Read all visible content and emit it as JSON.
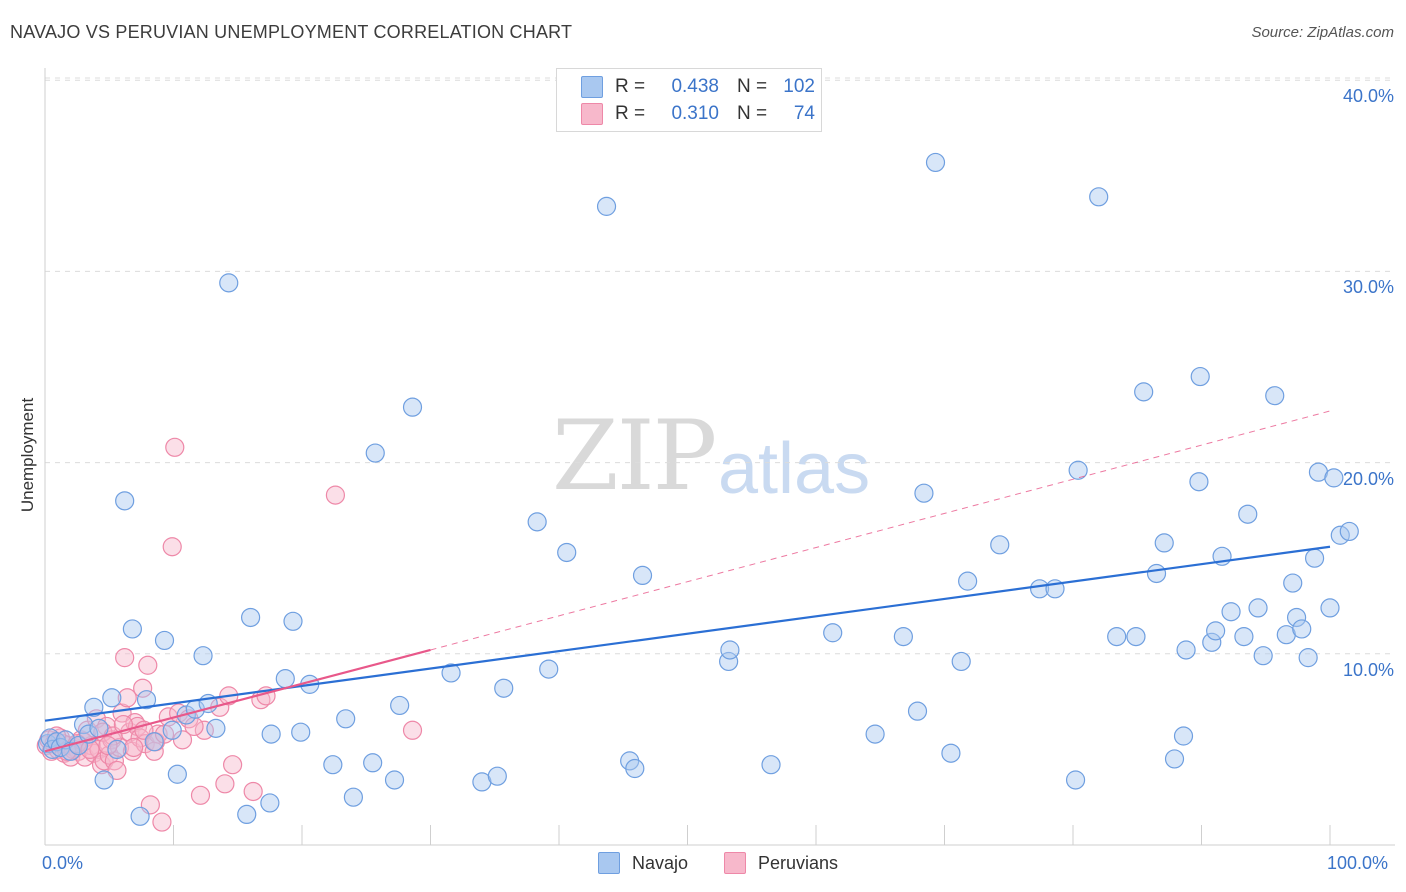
{
  "header": {
    "title": "NAVAJO VS PERUVIAN UNEMPLOYMENT CORRELATION CHART",
    "source": "Source: ZipAtlas.com"
  },
  "watermark": {
    "zip": "ZIP",
    "atlas": "atlas"
  },
  "legend_stats": {
    "navajo": {
      "r_label": "R =",
      "r_value": "0.438",
      "n_label": "N =",
      "n_value": "102"
    },
    "peruvians": {
      "r_label": "R =",
      "r_value": "0.310",
      "n_label": "N =",
      "n_value": "74"
    }
  },
  "legend_bottom": {
    "navajo": "Navajo",
    "peruvians": "Peruvians"
  },
  "colors": {
    "navajo_fill": "#a9c8f0",
    "navajo_stroke": "#6f9fe0",
    "navajo_line": "#2b6fd4",
    "peruvian_fill": "#f7b8cb",
    "peruvian_stroke": "#ee88a8",
    "peruvian_line": "#e8588a",
    "grid": "#dcdcdc",
    "tick_text": "#3b74c9"
  },
  "chart_data": {
    "type": "scatter",
    "title": "NAVAJO VS PERUVIAN UNEMPLOYMENT CORRELATION CHART",
    "xlabel": "",
    "ylabel": "Unemployment",
    "x_tick_labels": [
      "0.0%",
      "100.0%"
    ],
    "y_tick_labels": [
      "10.0%",
      "20.0%",
      "30.0%",
      "40.0%"
    ],
    "xlim": [
      0,
      100
    ],
    "ylim": [
      0,
      40.8
    ],
    "grid": "horizontal dashed",
    "legend": "top-center and bottom-center",
    "series": [
      {
        "name": "Navajo",
        "r": 0.438,
        "n": 102,
        "trend": {
          "x": [
            0,
            100
          ],
          "y": [
            6.5,
            15.6
          ],
          "style": "solid"
        },
        "points": [
          [
            0.2,
            5.3
          ],
          [
            0.4,
            5.6
          ],
          [
            0.6,
            5.0
          ],
          [
            0.9,
            5.4
          ],
          [
            1.2,
            5.1
          ],
          [
            1.6,
            5.5
          ],
          [
            2.0,
            4.9
          ],
          [
            2.6,
            5.2
          ],
          [
            3.0,
            6.3
          ],
          [
            3.4,
            5.8
          ],
          [
            3.8,
            7.2
          ],
          [
            4.2,
            6.1
          ],
          [
            4.6,
            3.4
          ],
          [
            5.2,
            7.7
          ],
          [
            5.6,
            5.0
          ],
          [
            6.2,
            18.0
          ],
          [
            6.8,
            11.3
          ],
          [
            7.4,
            1.5
          ],
          [
            7.9,
            7.6
          ],
          [
            8.5,
            5.4
          ],
          [
            9.3,
            10.7
          ],
          [
            9.9,
            6.0
          ],
          [
            10.3,
            3.7
          ],
          [
            11.0,
            6.8
          ],
          [
            11.7,
            7.1
          ],
          [
            12.3,
            9.9
          ],
          [
            12.7,
            7.4
          ],
          [
            13.3,
            6.1
          ],
          [
            14.3,
            29.4
          ],
          [
            15.7,
            1.6
          ],
          [
            16.0,
            11.9
          ],
          [
            17.5,
            2.2
          ],
          [
            17.6,
            5.8
          ],
          [
            18.7,
            8.7
          ],
          [
            19.3,
            11.7
          ],
          [
            19.9,
            5.9
          ],
          [
            20.6,
            8.4
          ],
          [
            22.4,
            4.2
          ],
          [
            23.4,
            6.6
          ],
          [
            24.0,
            2.5
          ],
          [
            25.5,
            4.3
          ],
          [
            25.7,
            20.5
          ],
          [
            27.2,
            3.4
          ],
          [
            27.6,
            7.3
          ],
          [
            28.6,
            22.9
          ],
          [
            31.6,
            9.0
          ],
          [
            34.0,
            3.3
          ],
          [
            35.2,
            3.6
          ],
          [
            35.7,
            8.2
          ],
          [
            38.3,
            16.9
          ],
          [
            39.2,
            9.2
          ],
          [
            40.6,
            15.3
          ],
          [
            43.7,
            33.4
          ],
          [
            45.5,
            4.4
          ],
          [
            45.9,
            4.0
          ],
          [
            46.5,
            14.1
          ],
          [
            53.2,
            9.6
          ],
          [
            53.3,
            10.2
          ],
          [
            56.5,
            4.2
          ],
          [
            61.3,
            11.1
          ],
          [
            64.6,
            5.8
          ],
          [
            66.8,
            10.9
          ],
          [
            67.9,
            7.0
          ],
          [
            68.4,
            18.4
          ],
          [
            69.3,
            35.7
          ],
          [
            70.5,
            4.8
          ],
          [
            71.3,
            9.6
          ],
          [
            71.8,
            13.8
          ],
          [
            74.3,
            15.7
          ],
          [
            77.4,
            13.4
          ],
          [
            78.6,
            13.4
          ],
          [
            80.2,
            3.4
          ],
          [
            80.4,
            19.6
          ],
          [
            82.0,
            33.9
          ],
          [
            83.4,
            10.9
          ],
          [
            84.9,
            10.9
          ],
          [
            85.5,
            23.7
          ],
          [
            86.5,
            14.2
          ],
          [
            87.1,
            15.8
          ],
          [
            87.9,
            4.5
          ],
          [
            88.6,
            5.7
          ],
          [
            88.8,
            10.2
          ],
          [
            89.8,
            19.0
          ],
          [
            89.9,
            24.5
          ],
          [
            90.8,
            10.6
          ],
          [
            91.1,
            11.2
          ],
          [
            91.6,
            15.1
          ],
          [
            92.3,
            12.2
          ],
          [
            93.3,
            10.9
          ],
          [
            93.6,
            17.3
          ],
          [
            94.4,
            12.4
          ],
          [
            94.8,
            9.9
          ],
          [
            95.7,
            23.5
          ],
          [
            96.6,
            11.0
          ],
          [
            97.1,
            13.7
          ],
          [
            97.4,
            11.9
          ],
          [
            97.8,
            11.3
          ],
          [
            98.3,
            9.8
          ],
          [
            98.8,
            15.0
          ],
          [
            99.1,
            19.5
          ],
          [
            100.0,
            12.4
          ],
          [
            100.3,
            19.2
          ],
          [
            100.8,
            16.2
          ],
          [
            101.5,
            16.4
          ]
        ]
      },
      {
        "name": "Peruvians",
        "r": 0.31,
        "n": 74,
        "trend": {
          "x": [
            0,
            30
          ],
          "y": [
            4.9,
            10.2
          ],
          "style": "solid",
          "extension": {
            "x": [
              30,
              100
            ],
            "y": [
              10.2,
              22.7
            ],
            "style": "dashed"
          }
        },
        "points": [
          [
            0.1,
            5.2
          ],
          [
            0.3,
            5.5
          ],
          [
            0.5,
            4.9
          ],
          [
            0.7,
            5.3
          ],
          [
            1.0,
            5.0
          ],
          [
            1.2,
            5.6
          ],
          [
            1.5,
            4.8
          ],
          [
            1.8,
            5.2
          ],
          [
            2.0,
            4.6
          ],
          [
            2.3,
            5.1
          ],
          [
            2.6,
            4.9
          ],
          [
            2.8,
            5.5
          ],
          [
            3.1,
            4.6
          ],
          [
            3.3,
            6.0
          ],
          [
            3.6,
            5.2
          ],
          [
            3.8,
            4.8
          ],
          [
            4.0,
            6.6
          ],
          [
            4.2,
            5.0
          ],
          [
            4.4,
            4.2
          ],
          [
            4.6,
            4.4
          ],
          [
            4.8,
            6.2
          ],
          [
            5.0,
            4.7
          ],
          [
            5.2,
            5.5
          ],
          [
            5.4,
            4.4
          ],
          [
            5.6,
            3.9
          ],
          [
            5.8,
            5.1
          ],
          [
            6.0,
            6.9
          ],
          [
            6.2,
            9.8
          ],
          [
            6.4,
            7.7
          ],
          [
            6.6,
            5.9
          ],
          [
            6.8,
            4.9
          ],
          [
            7.0,
            6.4
          ],
          [
            7.2,
            6.2
          ],
          [
            7.4,
            5.6
          ],
          [
            7.6,
            8.2
          ],
          [
            7.8,
            5.3
          ],
          [
            8.0,
            9.4
          ],
          [
            8.2,
            2.1
          ],
          [
            8.5,
            4.9
          ],
          [
            8.8,
            5.8
          ],
          [
            9.1,
            1.2
          ],
          [
            9.6,
            6.7
          ],
          [
            9.9,
            15.6
          ],
          [
            10.1,
            20.8
          ],
          [
            10.4,
            6.9
          ],
          [
            11.2,
            6.6
          ],
          [
            12.1,
            2.6
          ],
          [
            12.4,
            6.0
          ],
          [
            13.6,
            7.2
          ],
          [
            14.0,
            3.2
          ],
          [
            14.3,
            7.8
          ],
          [
            14.6,
            4.2
          ],
          [
            16.2,
            2.8
          ],
          [
            16.8,
            7.6
          ],
          [
            17.2,
            7.8
          ],
          [
            22.6,
            18.3
          ],
          [
            28.6,
            6.0
          ],
          [
            1.4,
            5.3
          ],
          [
            2.2,
            5.0
          ],
          [
            3.0,
            5.4
          ],
          [
            4.5,
            5.9
          ],
          [
            5.3,
            5.7
          ],
          [
            6.1,
            6.3
          ],
          [
            6.9,
            5.1
          ],
          [
            7.7,
            6.0
          ],
          [
            8.6,
            5.4
          ],
          [
            9.3,
            5.8
          ],
          [
            10.7,
            5.5
          ],
          [
            11.6,
            6.2
          ],
          [
            0.9,
            5.7
          ],
          [
            1.7,
            4.9
          ],
          [
            2.5,
            5.3
          ],
          [
            3.5,
            5.0
          ],
          [
            4.9,
            5.2
          ]
        ]
      }
    ]
  }
}
